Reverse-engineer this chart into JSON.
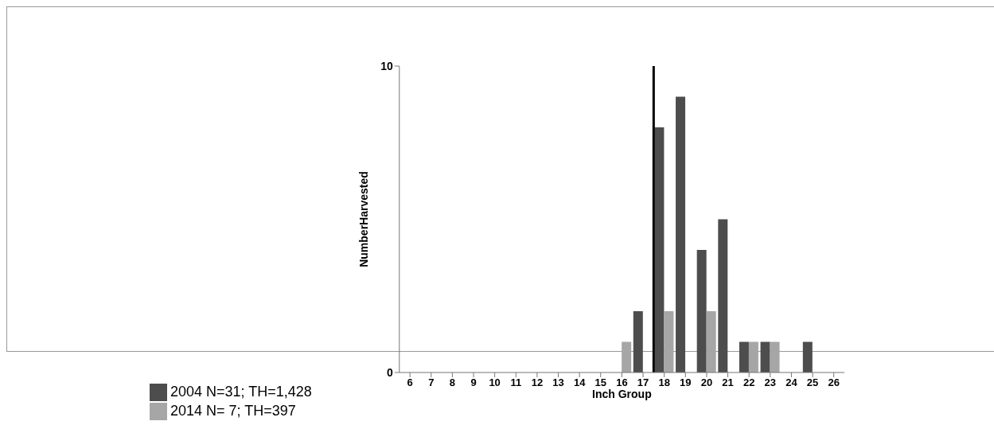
{
  "chart_data": {
    "type": "bar",
    "xlabel": "Inch Group",
    "ylabel": "NumberHarvested",
    "x": [
      6,
      7,
      8,
      9,
      10,
      11,
      12,
      13,
      14,
      15,
      16,
      17,
      18,
      19,
      20,
      21,
      22,
      23,
      24,
      25,
      26
    ],
    "xlim": [
      5.5,
      26.5
    ],
    "xticks": [
      6,
      7,
      8,
      9,
      10,
      11,
      12,
      13,
      14,
      15,
      16,
      17,
      18,
      19,
      20,
      21,
      22,
      23,
      24,
      25,
      26
    ],
    "ylim": [
      0,
      10
    ],
    "yticks": [
      0,
      10
    ],
    "series": [
      {
        "name": "2004 N=31; TH=1,428",
        "color": "#4d4d4d",
        "values": [
          0,
          0,
          0,
          0,
          0,
          0,
          0,
          0,
          0,
          0,
          0,
          2,
          8,
          9,
          4,
          5,
          1,
          1,
          0,
          1,
          0
        ]
      },
      {
        "name": "2014 N=  7; TH=397",
        "color": "#a6a6a6",
        "values": [
          0,
          0,
          0,
          0,
          0,
          0,
          0,
          0,
          0,
          0,
          1,
          0,
          2,
          0,
          2,
          0,
          1,
          1,
          0,
          0,
          0
        ]
      }
    ],
    "ref_lines": [
      {
        "axis": "x",
        "value": 17.5,
        "color": "#000000"
      }
    ],
    "grid": false,
    "legend": "bottom"
  }
}
